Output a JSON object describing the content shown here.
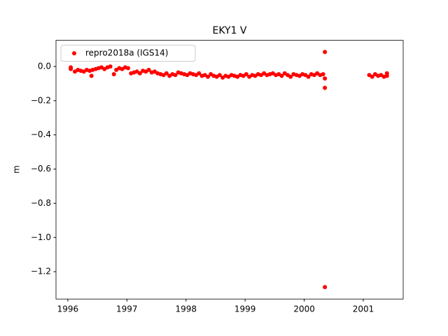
{
  "chart_data": {
    "type": "scatter",
    "title": "EKY1 V",
    "y_label": "m",
    "xlim": [
      1995.8,
      2001.675
    ],
    "ylim": [
      -1.36,
      0.153
    ],
    "xticks": [
      1996,
      1997,
      1998,
      1999,
      2000,
      2001
    ],
    "yticks": [
      {
        "value": 0,
        "label": "0.0"
      },
      {
        "value": -0.2,
        "label": "−0.2"
      },
      {
        "value": -0.4,
        "label": "−0.4"
      },
      {
        "value": -0.6,
        "label": "−0.6"
      },
      {
        "value": -0.8,
        "label": "−0.8"
      },
      {
        "value": -1.0,
        "label": "−1.0"
      },
      {
        "value": -1.2,
        "label": "−1.2"
      }
    ],
    "grid": false,
    "legend": "upper left",
    "series": [
      {
        "name": "repro2018a (IGS14)",
        "color": "#ff0000",
        "x": [
          1996.05,
          1996.05,
          1996.12,
          1996.17,
          1996.22,
          1996.27,
          1996.32,
          1996.37,
          1996.4,
          1996.42,
          1996.47,
          1996.52,
          1996.57,
          1996.62,
          1996.67,
          1996.72,
          1996.78,
          1996.82,
          1996.87,
          1996.92,
          1996.97,
          1997.02,
          1997.07,
          1997.12,
          1997.17,
          1997.22,
          1997.27,
          1997.32,
          1997.37,
          1997.42,
          1997.47,
          1997.52,
          1997.57,
          1997.62,
          1997.67,
          1997.72,
          1997.77,
          1997.82,
          1997.87,
          1997.92,
          1997.97,
          1998.02,
          1998.07,
          1998.12,
          1998.17,
          1998.22,
          1998.27,
          1998.32,
          1998.37,
          1998.42,
          1998.47,
          1998.52,
          1998.57,
          1998.62,
          1998.67,
          1998.72,
          1998.77,
          1998.82,
          1998.87,
          1998.92,
          1998.97,
          1999.02,
          1999.07,
          1999.12,
          1999.17,
          1999.22,
          1999.27,
          1999.32,
          1999.37,
          1999.42,
          1999.47,
          1999.52,
          1999.57,
          1999.62,
          1999.67,
          1999.72,
          1999.77,
          1999.82,
          1999.87,
          1999.92,
          1999.97,
          2000.02,
          2000.07,
          2000.12,
          2000.17,
          2000.22,
          2000.27,
          2000.32,
          2000.35,
          2000.35,
          2000.35,
          2000.35,
          2001.1,
          2001.15,
          2001.2,
          2001.25,
          2001.3,
          2001.35,
          2001.4,
          2001.4
        ],
        "values": [
          -0.005,
          -0.015,
          -0.03,
          -0.02,
          -0.025,
          -0.03,
          -0.02,
          -0.025,
          -0.055,
          -0.02,
          -0.015,
          -0.01,
          -0.005,
          -0.015,
          -0.005,
          0.0,
          -0.045,
          -0.02,
          -0.01,
          -0.015,
          -0.005,
          -0.01,
          -0.04,
          -0.035,
          -0.03,
          -0.04,
          -0.025,
          -0.03,
          -0.02,
          -0.035,
          -0.03,
          -0.04,
          -0.045,
          -0.05,
          -0.04,
          -0.055,
          -0.045,
          -0.05,
          -0.035,
          -0.04,
          -0.045,
          -0.05,
          -0.04,
          -0.045,
          -0.05,
          -0.04,
          -0.055,
          -0.05,
          -0.06,
          -0.045,
          -0.055,
          -0.06,
          -0.05,
          -0.065,
          -0.055,
          -0.06,
          -0.05,
          -0.055,
          -0.06,
          -0.05,
          -0.055,
          -0.045,
          -0.06,
          -0.05,
          -0.055,
          -0.045,
          -0.05,
          -0.04,
          -0.05,
          -0.045,
          -0.04,
          -0.05,
          -0.045,
          -0.055,
          -0.04,
          -0.05,
          -0.06,
          -0.045,
          -0.05,
          -0.055,
          -0.045,
          -0.05,
          -0.06,
          -0.045,
          -0.05,
          -0.04,
          -0.05,
          -0.045,
          0.085,
          -0.07,
          -0.125,
          -1.29,
          -0.05,
          -0.06,
          -0.045,
          -0.055,
          -0.05,
          -0.06,
          -0.04,
          -0.055
        ]
      }
    ]
  }
}
